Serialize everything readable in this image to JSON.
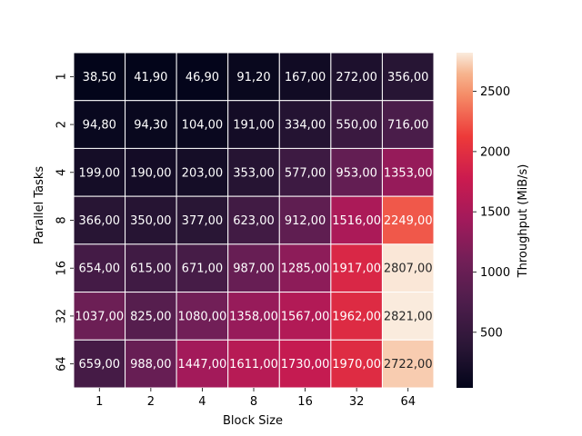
{
  "chart_data": {
    "type": "heatmap",
    "title": "",
    "xlabel": "Block Size",
    "ylabel": "Parallel Tasks",
    "x_categories": [
      "1",
      "2",
      "4",
      "8",
      "16",
      "32",
      "64"
    ],
    "y_categories": [
      "1",
      "2",
      "4",
      "8",
      "16",
      "32",
      "64"
    ],
    "values": [
      [
        38.5,
        41.9,
        46.9,
        91.2,
        167,
        272,
        356
      ],
      [
        94.8,
        94.3,
        104,
        191,
        334,
        550,
        716
      ],
      [
        199,
        190,
        203,
        353,
        577,
        953,
        1353
      ],
      [
        366,
        350,
        377,
        623,
        912,
        1516,
        2249
      ],
      [
        654,
        615,
        671,
        987,
        1285,
        1917,
        2807
      ],
      [
        1037,
        825,
        1080,
        1358,
        1567,
        1962,
        2821
      ],
      [
        659,
        988,
        1447,
        1611,
        1730,
        1970,
        2722
      ]
    ],
    "cell_labels": [
      [
        "38,50",
        "41,90",
        "46,90",
        "91,20",
        "167,00",
        "272,00",
        "356,00"
      ],
      [
        "94,80",
        "94,30",
        "104,00",
        "191,00",
        "334,00",
        "550,00",
        "716,00"
      ],
      [
        "199,00",
        "190,00",
        "203,00",
        "353,00",
        "577,00",
        "953,00",
        "1353,00"
      ],
      [
        "366,00",
        "350,00",
        "377,00",
        "623,00",
        "912,00",
        "1516,00",
        "2249,00"
      ],
      [
        "654,00",
        "615,00",
        "671,00",
        "987,00",
        "1285,00",
        "1917,00",
        "2807,00"
      ],
      [
        "1037,00",
        "825,00",
        "1080,00",
        "1358,00",
        "1567,00",
        "1962,00",
        "2821,00"
      ],
      [
        "659,00",
        "988,00",
        "1447,00",
        "1611,00",
        "1730,00",
        "1970,00",
        "2722,00"
      ]
    ],
    "colorbar": {
      "label": "Throughput (MiB/s)",
      "min": 38.5,
      "max": 2821,
      "ticks": [
        "500",
        "1000",
        "1500",
        "2000",
        "2500"
      ],
      "colormap": "rocket"
    },
    "cell_border_color": "#ffffff"
  }
}
